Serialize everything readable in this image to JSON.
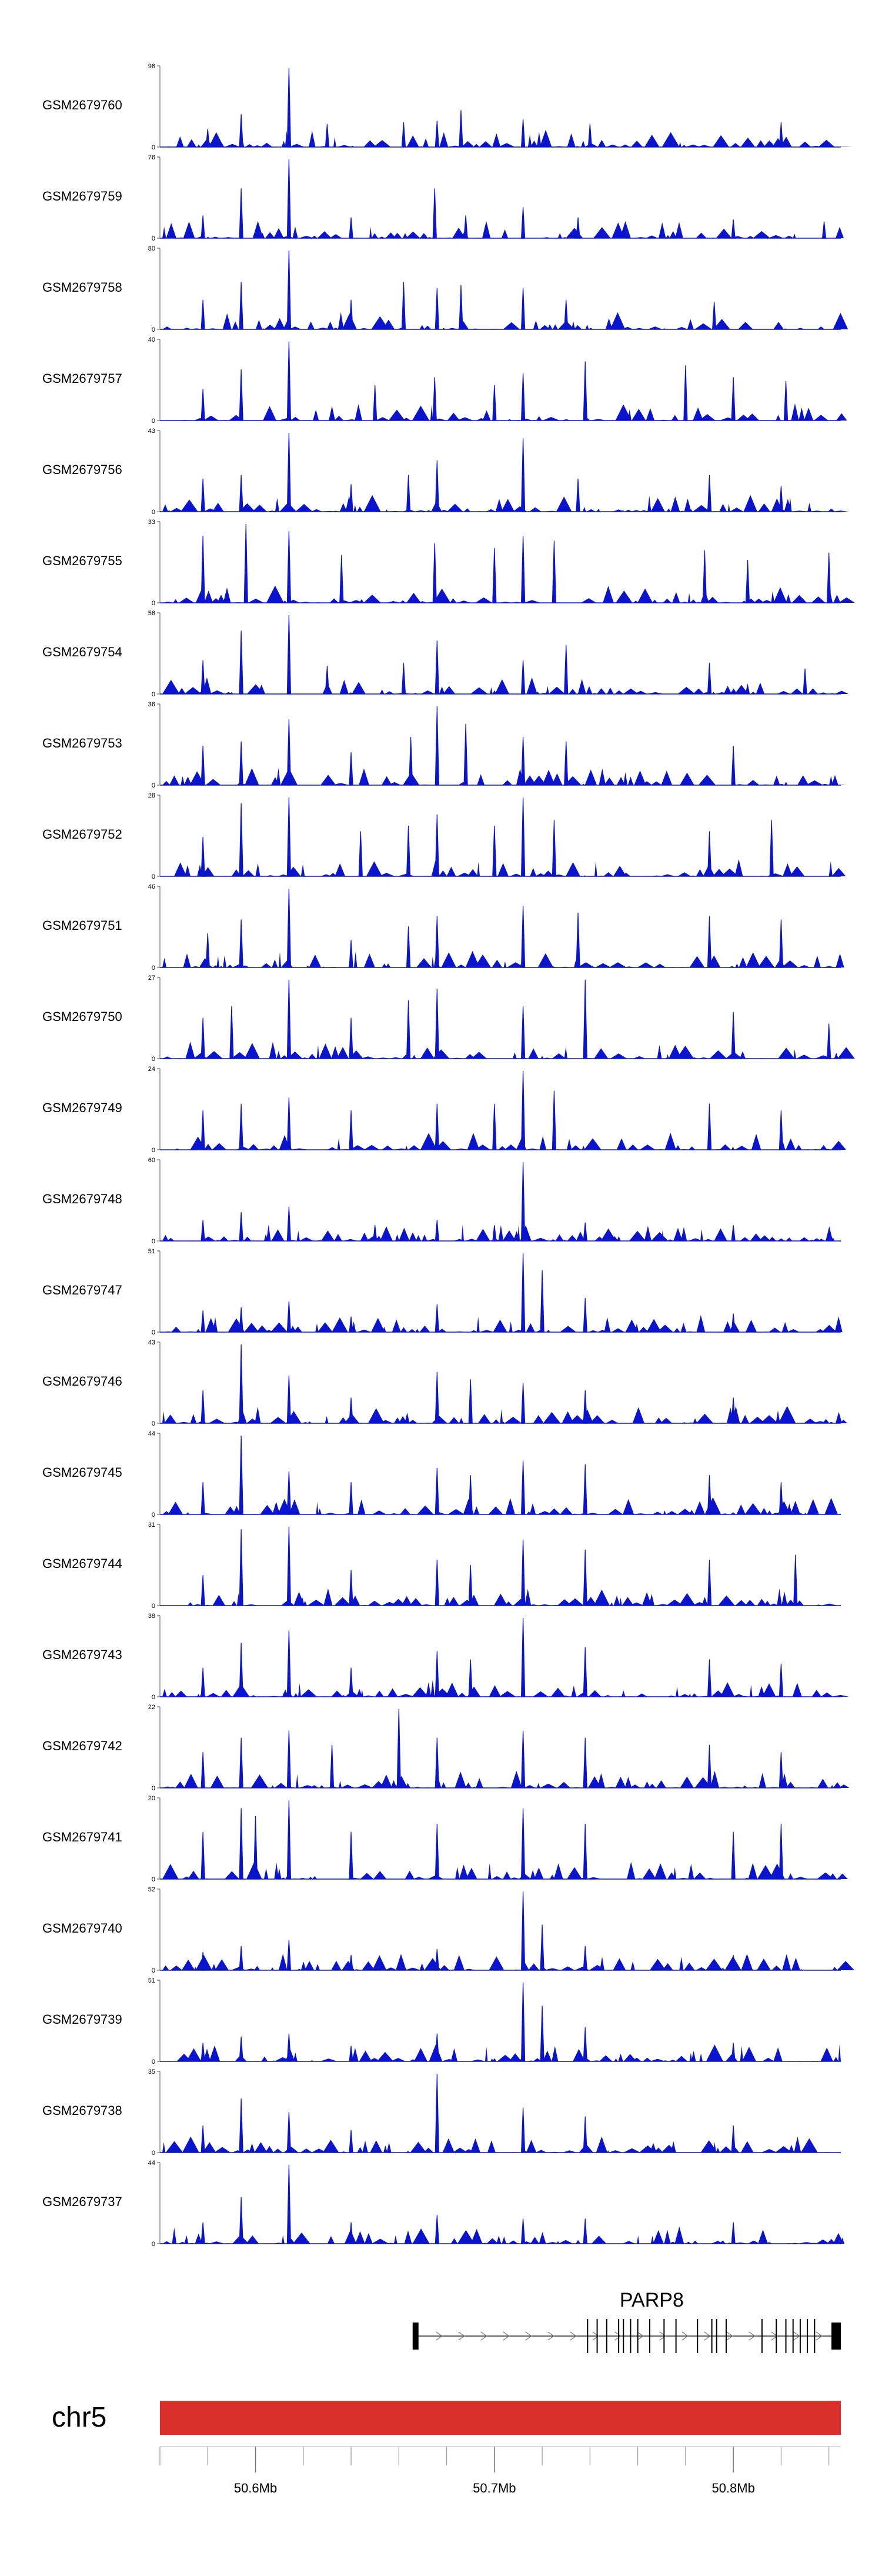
{
  "chart_data": {
    "type": "area",
    "title": "",
    "chromosome": "chr5",
    "x_range_mb": [
      50.56,
      50.845
    ],
    "axis": {
      "ticks": [
        {
          "value": 50.6,
          "label": "50.6Mb"
        },
        {
          "value": 50.7,
          "label": "50.7Mb"
        },
        {
          "value": 50.8,
          "label": "50.8Mb"
        }
      ],
      "minor_tick_step_mb": 0.02
    },
    "tracks": [
      {
        "name": "GSM2679760",
        "max": 96,
        "min_label": "0",
        "peaks": [
          [
            50.58,
            22
          ],
          [
            50.594,
            40
          ],
          [
            50.614,
            96
          ],
          [
            50.63,
            28
          ],
          [
            50.662,
            30
          ],
          [
            50.676,
            32
          ],
          [
            50.686,
            45
          ],
          [
            50.712,
            34
          ],
          [
            50.74,
            28
          ],
          [
            50.82,
            30
          ]
        ]
      },
      {
        "name": "GSM2679759",
        "max": 76,
        "min_label": "0",
        "peaks": [
          [
            50.578,
            22
          ],
          [
            50.594,
            48
          ],
          [
            50.614,
            76
          ],
          [
            50.64,
            20
          ],
          [
            50.675,
            48
          ],
          [
            50.688,
            22
          ],
          [
            50.712,
            30
          ],
          [
            50.735,
            20
          ],
          [
            50.8,
            18
          ],
          [
            50.838,
            16
          ]
        ]
      },
      {
        "name": "GSM2679758",
        "max": 80,
        "min_label": "0",
        "peaks": [
          [
            50.578,
            30
          ],
          [
            50.594,
            48
          ],
          [
            50.614,
            80
          ],
          [
            50.64,
            30
          ],
          [
            50.662,
            48
          ],
          [
            50.676,
            42
          ],
          [
            50.686,
            45
          ],
          [
            50.712,
            42
          ],
          [
            50.73,
            30
          ],
          [
            50.792,
            28
          ]
        ]
      },
      {
        "name": "GSM2679757",
        "max": 40,
        "min_label": "0",
        "peaks": [
          [
            50.578,
            16
          ],
          [
            50.594,
            26
          ],
          [
            50.614,
            40
          ],
          [
            50.65,
            18
          ],
          [
            50.675,
            22
          ],
          [
            50.7,
            18
          ],
          [
            50.712,
            24
          ],
          [
            50.738,
            30
          ],
          [
            50.78,
            28
          ],
          [
            50.8,
            22
          ],
          [
            50.822,
            20
          ]
        ]
      },
      {
        "name": "GSM2679756",
        "max": 43,
        "min_label": "0",
        "peaks": [
          [
            50.578,
            18
          ],
          [
            50.594,
            20
          ],
          [
            50.614,
            43
          ],
          [
            50.64,
            15
          ],
          [
            50.664,
            20
          ],
          [
            50.676,
            28
          ],
          [
            50.712,
            40
          ],
          [
            50.735,
            18
          ],
          [
            50.79,
            20
          ],
          [
            50.82,
            14
          ]
        ]
      },
      {
        "name": "GSM2679755",
        "max": 33,
        "min_label": "0",
        "peaks": [
          [
            50.578,
            28
          ],
          [
            50.596,
            33
          ],
          [
            50.614,
            30
          ],
          [
            50.636,
            20
          ],
          [
            50.675,
            25
          ],
          [
            50.7,
            23
          ],
          [
            50.712,
            28
          ],
          [
            50.725,
            26
          ],
          [
            50.788,
            22
          ],
          [
            50.806,
            18
          ],
          [
            50.84,
            21
          ]
        ]
      },
      {
        "name": "GSM2679754",
        "max": 56,
        "min_label": "0",
        "peaks": [
          [
            50.578,
            24
          ],
          [
            50.594,
            45
          ],
          [
            50.614,
            56
          ],
          [
            50.63,
            20
          ],
          [
            50.662,
            22
          ],
          [
            50.676,
            38
          ],
          [
            50.712,
            24
          ],
          [
            50.73,
            35
          ],
          [
            50.79,
            22
          ],
          [
            50.83,
            18
          ]
        ]
      },
      {
        "name": "GSM2679753",
        "max": 36,
        "min_label": "0",
        "peaks": [
          [
            50.578,
            18
          ],
          [
            50.594,
            20
          ],
          [
            50.614,
            30
          ],
          [
            50.64,
            15
          ],
          [
            50.665,
            22
          ],
          [
            50.676,
            36
          ],
          [
            50.688,
            28
          ],
          [
            50.712,
            22
          ],
          [
            50.73,
            20
          ],
          [
            50.8,
            18
          ]
        ]
      },
      {
        "name": "GSM2679752",
        "max": 28,
        "min_label": "0",
        "peaks": [
          [
            50.578,
            14
          ],
          [
            50.594,
            26
          ],
          [
            50.614,
            28
          ],
          [
            50.644,
            16
          ],
          [
            50.664,
            18
          ],
          [
            50.676,
            22
          ],
          [
            50.7,
            18
          ],
          [
            50.712,
            28
          ],
          [
            50.725,
            20
          ],
          [
            50.79,
            16
          ],
          [
            50.816,
            20
          ]
        ]
      },
      {
        "name": "GSM2679751",
        "max": 46,
        "min_label": "0",
        "peaks": [
          [
            50.58,
            20
          ],
          [
            50.594,
            28
          ],
          [
            50.614,
            46
          ],
          [
            50.64,
            16
          ],
          [
            50.664,
            24
          ],
          [
            50.676,
            30
          ],
          [
            50.712,
            36
          ],
          [
            50.735,
            32
          ],
          [
            50.79,
            30
          ],
          [
            50.82,
            28
          ]
        ]
      },
      {
        "name": "GSM2679750",
        "max": 27,
        "min_label": "0",
        "peaks": [
          [
            50.578,
            14
          ],
          [
            50.59,
            18
          ],
          [
            50.614,
            27
          ],
          [
            50.64,
            14
          ],
          [
            50.664,
            20
          ],
          [
            50.676,
            24
          ],
          [
            50.712,
            18
          ],
          [
            50.738,
            27
          ],
          [
            50.8,
            16
          ],
          [
            50.84,
            12
          ]
        ]
      },
      {
        "name": "GSM2679749",
        "max": 24,
        "min_label": "0",
        "peaks": [
          [
            50.578,
            12
          ],
          [
            50.594,
            14
          ],
          [
            50.614,
            16
          ],
          [
            50.64,
            12
          ],
          [
            50.676,
            14
          ],
          [
            50.7,
            14
          ],
          [
            50.712,
            24
          ],
          [
            50.725,
            18
          ],
          [
            50.79,
            14
          ],
          [
            50.82,
            12
          ]
        ]
      },
      {
        "name": "GSM2679748",
        "max": 60,
        "min_label": "0",
        "peaks": [
          [
            50.578,
            16
          ],
          [
            50.594,
            22
          ],
          [
            50.614,
            26
          ],
          [
            50.65,
            12
          ],
          [
            50.676,
            16
          ],
          [
            50.7,
            12
          ],
          [
            50.712,
            60
          ],
          [
            50.738,
            14
          ],
          [
            50.8,
            12
          ]
        ]
      },
      {
        "name": "GSM2679747",
        "max": 51,
        "min_label": "0",
        "peaks": [
          [
            50.578,
            14
          ],
          [
            50.594,
            16
          ],
          [
            50.614,
            20
          ],
          [
            50.64,
            10
          ],
          [
            50.676,
            18
          ],
          [
            50.712,
            51
          ],
          [
            50.72,
            40
          ],
          [
            50.738,
            22
          ],
          [
            50.8,
            12
          ]
        ]
      },
      {
        "name": "GSM2679746",
        "max": 43,
        "min_label": "0",
        "peaks": [
          [
            50.578,
            18
          ],
          [
            50.594,
            43
          ],
          [
            50.614,
            26
          ],
          [
            50.64,
            14
          ],
          [
            50.676,
            28
          ],
          [
            50.69,
            24
          ],
          [
            50.712,
            22
          ],
          [
            50.738,
            18
          ],
          [
            50.8,
            14
          ]
        ]
      },
      {
        "name": "GSM2679745",
        "max": 44,
        "min_label": "0",
        "peaks": [
          [
            50.578,
            18
          ],
          [
            50.594,
            44
          ],
          [
            50.614,
            24
          ],
          [
            50.64,
            18
          ],
          [
            50.676,
            26
          ],
          [
            50.69,
            22
          ],
          [
            50.712,
            30
          ],
          [
            50.738,
            28
          ],
          [
            50.79,
            22
          ],
          [
            50.82,
            18
          ]
        ]
      },
      {
        "name": "GSM2679744",
        "max": 31,
        "min_label": "0",
        "peaks": [
          [
            50.578,
            12
          ],
          [
            50.594,
            30
          ],
          [
            50.614,
            31
          ],
          [
            50.64,
            14
          ],
          [
            50.676,
            18
          ],
          [
            50.69,
            16
          ],
          [
            50.712,
            26
          ],
          [
            50.738,
            22
          ],
          [
            50.79,
            18
          ],
          [
            50.826,
            20
          ]
        ]
      },
      {
        "name": "GSM2679743",
        "max": 38,
        "min_label": "0",
        "peaks": [
          [
            50.578,
            14
          ],
          [
            50.594,
            26
          ],
          [
            50.614,
            32
          ],
          [
            50.64,
            14
          ],
          [
            50.676,
            22
          ],
          [
            50.69,
            18
          ],
          [
            50.712,
            38
          ],
          [
            50.738,
            24
          ],
          [
            50.79,
            18
          ],
          [
            50.82,
            16
          ]
        ]
      },
      {
        "name": "GSM2679742",
        "max": 22,
        "min_label": "0",
        "peaks": [
          [
            50.578,
            10
          ],
          [
            50.594,
            14
          ],
          [
            50.614,
            16
          ],
          [
            50.632,
            12
          ],
          [
            50.66,
            22
          ],
          [
            50.676,
            14
          ],
          [
            50.712,
            16
          ],
          [
            50.738,
            14
          ],
          [
            50.79,
            12
          ],
          [
            50.82,
            10
          ]
        ]
      },
      {
        "name": "GSM2679741",
        "max": 20,
        "min_label": "0",
        "peaks": [
          [
            50.578,
            12
          ],
          [
            50.594,
            18
          ],
          [
            50.6,
            16
          ],
          [
            50.614,
            20
          ],
          [
            50.64,
            12
          ],
          [
            50.676,
            14
          ],
          [
            50.712,
            18
          ],
          [
            50.738,
            14
          ],
          [
            50.8,
            12
          ],
          [
            50.82,
            14
          ]
        ]
      },
      {
        "name": "GSM2679740",
        "max": 52,
        "min_label": "0",
        "peaks": [
          [
            50.578,
            12
          ],
          [
            50.594,
            16
          ],
          [
            50.614,
            20
          ],
          [
            50.64,
            10
          ],
          [
            50.676,
            14
          ],
          [
            50.712,
            52
          ],
          [
            50.72,
            30
          ],
          [
            50.738,
            16
          ],
          [
            50.8,
            10
          ]
        ]
      },
      {
        "name": "GSM2679739",
        "max": 51,
        "min_label": "0",
        "peaks": [
          [
            50.578,
            12
          ],
          [
            50.594,
            16
          ],
          [
            50.614,
            18
          ],
          [
            50.64,
            10
          ],
          [
            50.676,
            18
          ],
          [
            50.712,
            51
          ],
          [
            50.72,
            36
          ],
          [
            50.738,
            22
          ],
          [
            50.8,
            12
          ]
        ]
      },
      {
        "name": "GSM2679738",
        "max": 35,
        "min_label": "0",
        "peaks": [
          [
            50.578,
            12
          ],
          [
            50.594,
            24
          ],
          [
            50.614,
            18
          ],
          [
            50.64,
            10
          ],
          [
            50.676,
            35
          ],
          [
            50.712,
            20
          ],
          [
            50.738,
            16
          ],
          [
            50.8,
            12
          ]
        ]
      },
      {
        "name": "GSM2679737",
        "max": 44,
        "min_label": "0",
        "peaks": [
          [
            50.578,
            12
          ],
          [
            50.594,
            26
          ],
          [
            50.614,
            44
          ],
          [
            50.64,
            12
          ],
          [
            50.676,
            16
          ],
          [
            50.712,
            14
          ],
          [
            50.738,
            14
          ],
          [
            50.8,
            12
          ]
        ]
      }
    ],
    "gene": {
      "name": "PARP8",
      "start_mb": 50.667,
      "end_mb": 50.845,
      "strand": "+",
      "exons_mb": [
        50.667,
        50.739,
        50.743,
        50.747,
        50.752,
        50.754,
        50.757,
        50.76,
        50.765,
        50.771,
        50.776,
        50.785,
        50.791,
        50.793,
        50.797,
        50.812,
        50.818,
        50.822,
        50.825,
        50.828,
        50.831,
        50.834,
        50.845
      ]
    },
    "colors": {
      "signal": "#0a14cc",
      "chromosome_bar": "#d9302b",
      "axis": "#555555",
      "gene": "#000000"
    }
  }
}
